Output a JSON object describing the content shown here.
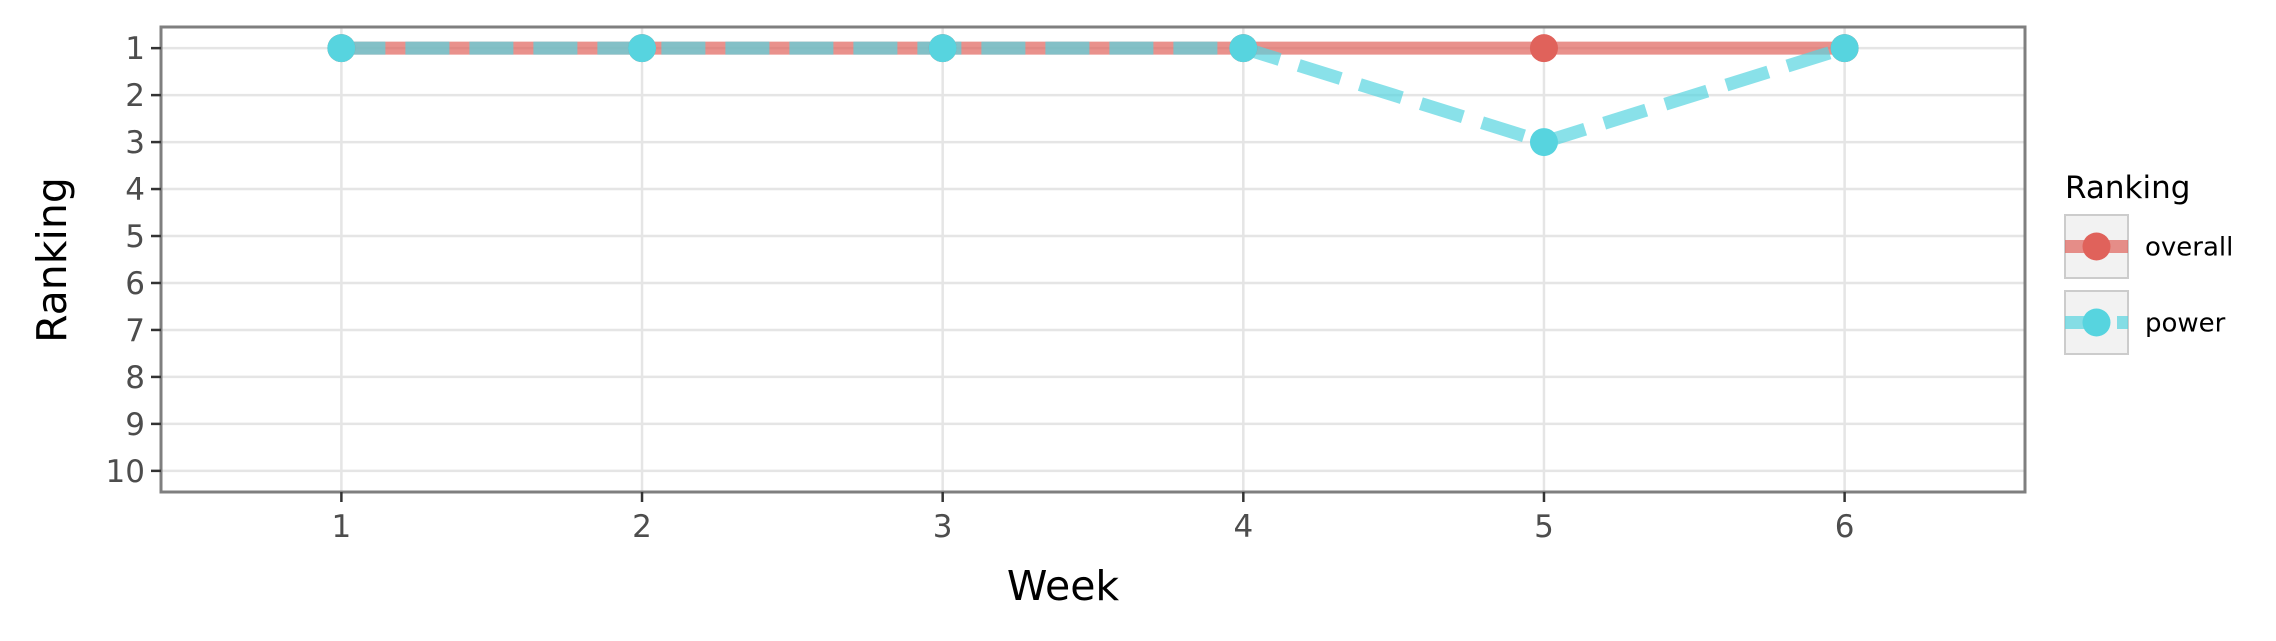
{
  "chart_data": {
    "type": "line",
    "xlabel": "Week",
    "ylabel": "Ranking",
    "x": [
      1,
      2,
      3,
      4,
      5,
      6
    ],
    "xlim": [
      0.4,
      6.6
    ],
    "ylim": [
      10.45,
      0.55
    ],
    "y_reversed": true,
    "x_ticks": [
      "1",
      "2",
      "3",
      "4",
      "5",
      "6"
    ],
    "y_ticks": [
      "1",
      "2",
      "3",
      "4",
      "5",
      "6",
      "7",
      "8",
      "9",
      "10"
    ],
    "grid": true,
    "legend": {
      "title": "Ranking",
      "position": "right"
    },
    "series": [
      {
        "name": "overall",
        "values": [
          1,
          1,
          1,
          1,
          1,
          1
        ],
        "color": "#e0625b",
        "line_style": "solid"
      },
      {
        "name": "power",
        "values": [
          1,
          1,
          1,
          1,
          3,
          1
        ],
        "color": "#57d4df",
        "line_style": "dashed"
      }
    ]
  }
}
